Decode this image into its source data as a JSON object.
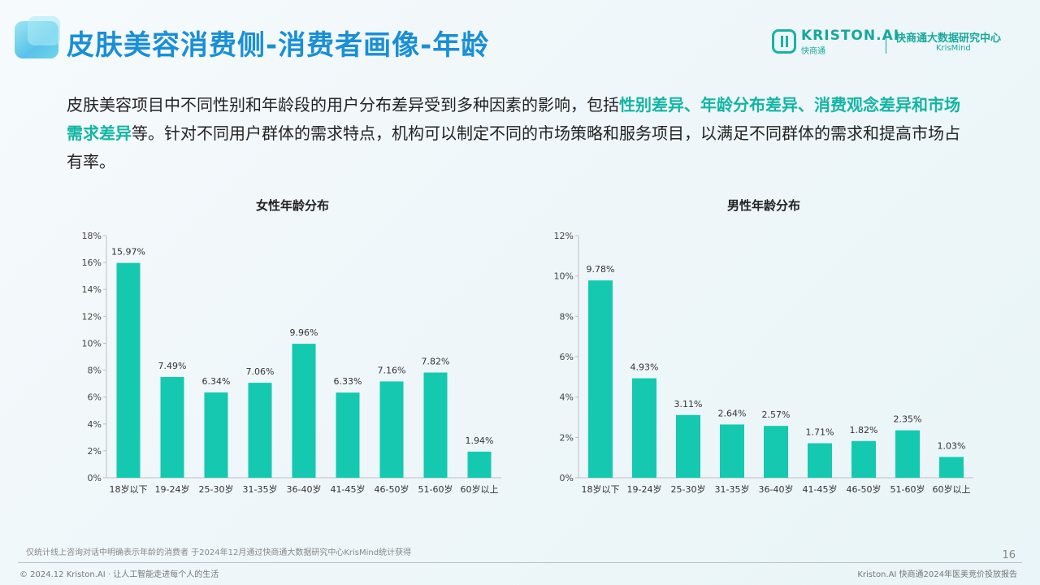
{
  "header": {
    "title": "皮肤美容消费侧-消费者画像-年龄"
  },
  "logo": {
    "brand": "KRISTON.AI",
    "brand_sub": "快商通",
    "org": "快商通大数据研究中心",
    "org_sub": "KrisMind"
  },
  "intro": {
    "p1": "皮肤美容项目中不同性别和年龄段的用户分布差异受到多种因素的影响，包括",
    "highlight": "性别差异、年龄分布差异、消费观念差异和市场需求差异",
    "p2": "等。针对不同用户群体的需求特点，机构可以制定不同的市场策略和服务项目，以满足不同群体的需求和提高市场占有率。"
  },
  "chart_data": [
    {
      "type": "bar",
      "title": "女性年龄分布",
      "categories": [
        "18岁以下",
        "19-24岁",
        "25-30岁",
        "31-35岁",
        "36-40岁",
        "41-45岁",
        "46-50岁",
        "51-60岁",
        "60岁以上"
      ],
      "values": [
        15.97,
        7.49,
        6.34,
        7.06,
        9.96,
        6.33,
        7.16,
        7.82,
        1.94
      ],
      "value_labels": [
        "15.97%",
        "7.49%",
        "6.34%",
        "7.06%",
        "9.96%",
        "6.33%",
        "7.16%",
        "7.82%",
        "1.94%"
      ],
      "yticks": [
        0,
        2,
        4,
        6,
        8,
        10,
        12,
        14,
        16,
        18
      ],
      "ytick_labels": [
        "0%",
        "2%",
        "4%",
        "6%",
        "8%",
        "10%",
        "12%",
        "14%",
        "16%",
        "18%"
      ],
      "ylim": [
        0,
        18
      ],
      "xlabel": "",
      "ylabel": "",
      "grid": false,
      "color": "#14c9b0"
    },
    {
      "type": "bar",
      "title": "男性年龄分布",
      "categories": [
        "18岁以下",
        "19-24岁",
        "25-30岁",
        "31-35岁",
        "36-40岁",
        "41-45岁",
        "46-50岁",
        "51-60岁",
        "60岁以上"
      ],
      "values": [
        9.78,
        4.93,
        3.11,
        2.64,
        2.57,
        1.71,
        1.82,
        2.35,
        1.03
      ],
      "value_labels": [
        "9.78%",
        "4.93%",
        "3.11%",
        "2.64%",
        "2.57%",
        "1.71%",
        "1.82%",
        "2.35%",
        "1.03%"
      ],
      "yticks": [
        0,
        2,
        4,
        6,
        8,
        10,
        12
      ],
      "ytick_labels": [
        "0%",
        "2%",
        "4%",
        "6%",
        "8%",
        "10%",
        "12%"
      ],
      "ylim": [
        0,
        12
      ],
      "xlabel": "",
      "ylabel": "",
      "grid": false,
      "color": "#14c9b0"
    }
  ],
  "footer": {
    "note": "仅统计线上咨询对话中明确表示年龄的消费者 于2024年12月通过快商通大数据研究中心KrisMind统计获得",
    "page_number": "16",
    "copyright": "© 2024.12 Kriston.AI · 让人工智能走进每个人的生活",
    "report_name": "Kriston.AI 快商通2024年医美竞价投放报告"
  }
}
